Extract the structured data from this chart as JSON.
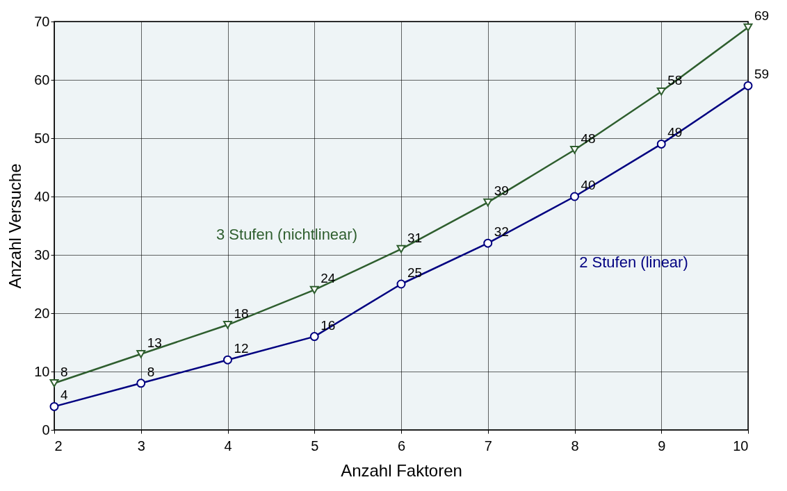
{
  "chart_data": {
    "type": "line",
    "xlabel": "Anzahl Faktoren",
    "ylabel": "Anzahl Versuche",
    "x": [
      2,
      3,
      4,
      5,
      6,
      7,
      8,
      9,
      10
    ],
    "series": [
      {
        "name": "3 Stufen (nichtlinear)",
        "color": "#2e5e2e",
        "marker": "triangle",
        "values": [
          8,
          13,
          18,
          24,
          31,
          39,
          48,
          58,
          69
        ]
      },
      {
        "name": "2 Stufen (linear)",
        "color": "#000080",
        "marker": "circle",
        "values": [
          4,
          8,
          12,
          16,
          25,
          32,
          40,
          49,
          59
        ]
      }
    ],
    "xlim": [
      2,
      10
    ],
    "xticks": [
      2,
      3,
      4,
      5,
      6,
      7,
      8,
      9,
      10
    ],
    "ylim": [
      0,
      70
    ],
    "yticks": [
      0,
      10,
      20,
      30,
      40,
      50,
      60,
      70
    ],
    "grid": true,
    "data_labels": true,
    "line_style": "solid"
  }
}
